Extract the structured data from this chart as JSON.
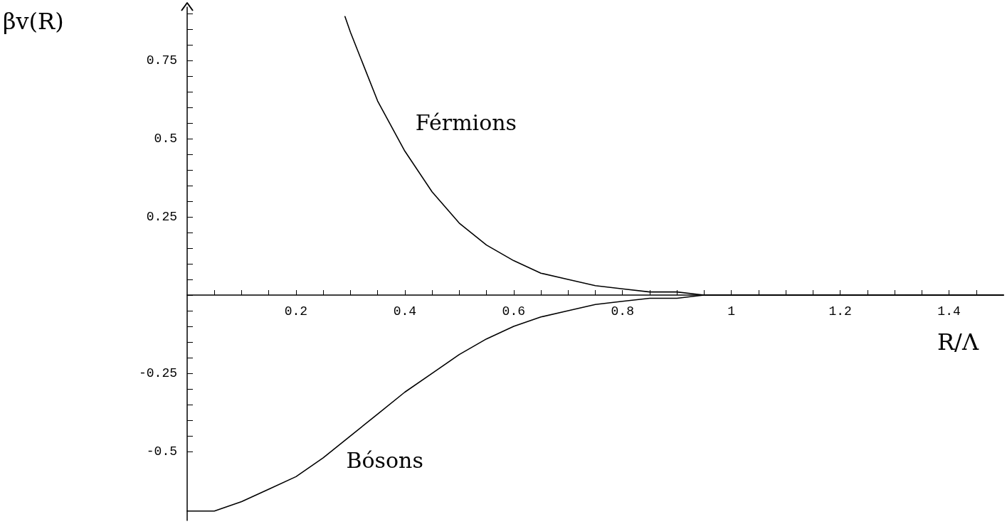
{
  "chart_data": {
    "type": "line",
    "xlabel": "R/Λ",
    "ylabel": "βv(R)",
    "xlim": [
      0,
      1.5
    ],
    "ylim": [
      -0.72,
      0.92
    ],
    "xticks": [
      {
        "value": 0.05,
        "label": null
      },
      {
        "value": 0.1,
        "label": null
      },
      {
        "value": 0.15,
        "label": null
      },
      0.2,
      {
        "value": 0.25,
        "label": null
      },
      {
        "value": 0.3,
        "label": null
      },
      {
        "value": 0.35,
        "label": null
      },
      0.4,
      {
        "value": 0.45,
        "label": null
      },
      {
        "value": 0.5,
        "label": null
      },
      {
        "value": 0.55,
        "label": null
      },
      0.6,
      {
        "value": 0.65,
        "label": null
      },
      {
        "value": 0.7,
        "label": null
      },
      {
        "value": 0.75,
        "label": null
      },
      0.8,
      {
        "value": 0.85,
        "label": null
      },
      {
        "value": 0.9,
        "label": null
      },
      {
        "value": 0.95,
        "label": null
      },
      1,
      {
        "value": 1.05,
        "label": null
      },
      {
        "value": 1.1,
        "label": null
      },
      {
        "value": 1.15,
        "label": null
      },
      1.2,
      {
        "value": 1.25,
        "label": null
      },
      {
        "value": 1.3,
        "label": null
      },
      {
        "value": 1.35,
        "label": null
      },
      1.4,
      {
        "value": 1.45,
        "label": null
      }
    ],
    "yticks": [
      -0.5,
      {
        "value": -0.45,
        "label": null
      },
      {
        "value": -0.4,
        "label": null
      },
      {
        "value": -0.35,
        "label": null
      },
      {
        "value": -0.3,
        "label": null
      },
      -0.25,
      {
        "value": -0.2,
        "label": null
      },
      {
        "value": -0.15,
        "label": null
      },
      {
        "value": -0.1,
        "label": null
      },
      {
        "value": -0.05,
        "label": null
      },
      {
        "value": 0,
        "label": null
      },
      {
        "value": 0.05,
        "label": null
      },
      {
        "value": 0.1,
        "label": null
      },
      {
        "value": 0.15,
        "label": null
      },
      {
        "value": 0.2,
        "label": null
      },
      0.25,
      {
        "value": 0.3,
        "label": null
      },
      {
        "value": 0.35,
        "label": null
      },
      {
        "value": 0.4,
        "label": null
      },
      {
        "value": 0.45,
        "label": null
      },
      0.5,
      {
        "value": 0.55,
        "label": null
      },
      {
        "value": 0.6,
        "label": null
      },
      {
        "value": 0.65,
        "label": null
      },
      {
        "value": 0.7,
        "label": null
      },
      0.75,
      {
        "value": 0.8,
        "label": null
      },
      {
        "value": 0.85,
        "label": null
      },
      {
        "value": 0.9,
        "label": null
      }
    ],
    "grid": false,
    "legend": false,
    "marker": "none",
    "line_style": "solid",
    "series": [
      {
        "name": "Férmions",
        "color": "#000000",
        "x": [
          0.29,
          0.3,
          0.35,
          0.4,
          0.45,
          0.5,
          0.55,
          0.6,
          0.65,
          0.7,
          0.75,
          0.8,
          0.85,
          0.9,
          0.95,
          1.0,
          1.1,
          1.2,
          1.3,
          1.4,
          1.5
        ],
        "values": [
          0.89,
          0.84,
          0.62,
          0.46,
          0.33,
          0.23,
          0.16,
          0.11,
          0.07,
          0.05,
          0.03,
          0.02,
          0.01,
          0.01,
          0.0,
          0.0,
          0.0,
          0.0,
          0.0,
          0.0,
          0.0
        ]
      },
      {
        "name": "Bósons",
        "color": "#000000",
        "x": [
          0,
          0.05,
          0.1,
          0.15,
          0.2,
          0.25,
          0.3,
          0.35,
          0.4,
          0.45,
          0.5,
          0.55,
          0.6,
          0.65,
          0.7,
          0.75,
          0.8,
          0.85,
          0.9,
          0.95,
          1.0,
          1.1,
          1.2,
          1.3,
          1.4,
          1.5
        ],
        "values": [
          -0.69,
          -0.69,
          -0.66,
          -0.62,
          -0.58,
          -0.52,
          -0.45,
          -0.38,
          -0.31,
          -0.25,
          -0.19,
          -0.14,
          -0.1,
          -0.07,
          -0.05,
          -0.03,
          -0.02,
          -0.01,
          -0.01,
          0.0,
          0.0,
          0.0,
          0.0,
          0.0,
          0.0,
          0.0
        ]
      }
    ]
  }
}
